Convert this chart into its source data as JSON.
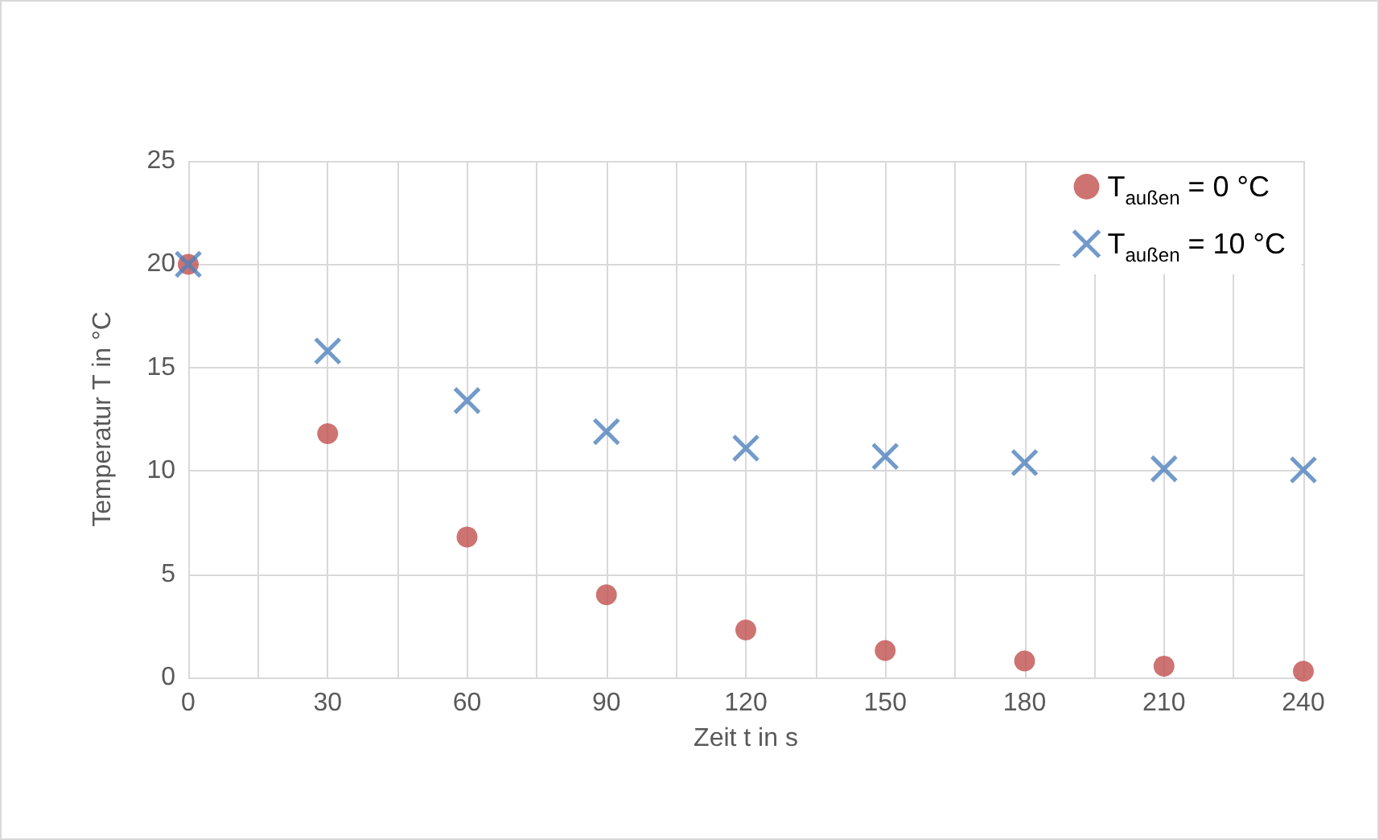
{
  "chart_data": {
    "type": "scatter",
    "xlabel": "Zeit t in s",
    "ylabel": "Temperatur T in °C",
    "x": [
      0,
      30,
      60,
      90,
      120,
      150,
      180,
      210,
      240
    ],
    "series": [
      {
        "name": "T$_{außen}$ = 0 °C",
        "color": "#c0504d",
        "marker": "circle",
        "values": [
          20,
          11.8,
          6.8,
          4.0,
          2.3,
          1.3,
          0.8,
          0.55,
          0.3
        ]
      },
      {
        "name": "T$_{außen}$ = 10 °C",
        "color": "#4f81bd",
        "marker": "cross",
        "values": [
          20,
          15.8,
          13.4,
          11.9,
          11.1,
          10.7,
          10.4,
          10.1,
          10.05
        ]
      }
    ],
    "xlim": [
      0,
      240
    ],
    "xticks": [
      0,
      {
        "value": 15,
        "label": null
      },
      30,
      {
        "value": 45,
        "label": null
      },
      60,
      {
        "value": 75,
        "label": null
      },
      90,
      {
        "value": 105,
        "label": null
      },
      120,
      {
        "value": 135,
        "label": null
      },
      150,
      {
        "value": 165,
        "label": null
      },
      180,
      {
        "value": 195,
        "label": null
      },
      210,
      {
        "value": 225,
        "label": null
      },
      240
    ],
    "ylim": [
      0,
      25
    ],
    "yticks": [
      0,
      5,
      10,
      15,
      20,
      25
    ],
    "grid": true,
    "legend": "top right"
  }
}
